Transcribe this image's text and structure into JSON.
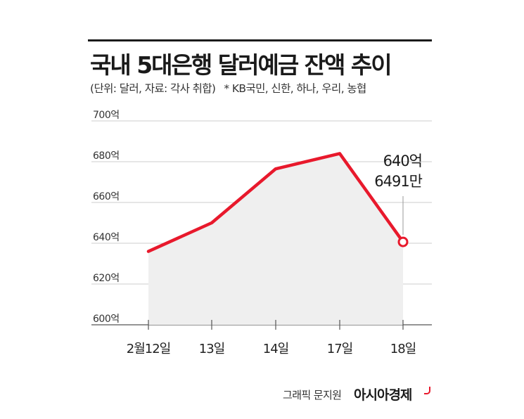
{
  "title": "국내 5대은행 달러예금 잔액 추이",
  "subtitle": {
    "unit_source": "(단위: 달러, 자료: 각사 취합)",
    "banks": "* KB국민, 신한, 하나, 우리, 농협"
  },
  "credit": {
    "author": "그래픽 문지원",
    "brand": "아시아경제"
  },
  "colors": {
    "line": "#e8192c",
    "area": "#efefef",
    "grid": "#cccccc"
  },
  "chart_data": {
    "type": "area",
    "title": "국내 5대은행 달러예금 잔액 추이",
    "categories": [
      "2월12일",
      "13일",
      "14일",
      "17일",
      "18일"
    ],
    "series": [
      {
        "values": [
          636,
          650,
          676.5,
          684,
          640.6491
        ]
      }
    ],
    "y_tick_labels": [
      "700억",
      "680억",
      "660억",
      "640억",
      "620억",
      "600억"
    ],
    "y_ticks": [
      700,
      680,
      660,
      640,
      620,
      600
    ],
    "ylim": [
      600,
      700
    ],
    "grid": true,
    "annotation": {
      "index": 4,
      "line1": "640억",
      "line2": "6491만"
    }
  }
}
